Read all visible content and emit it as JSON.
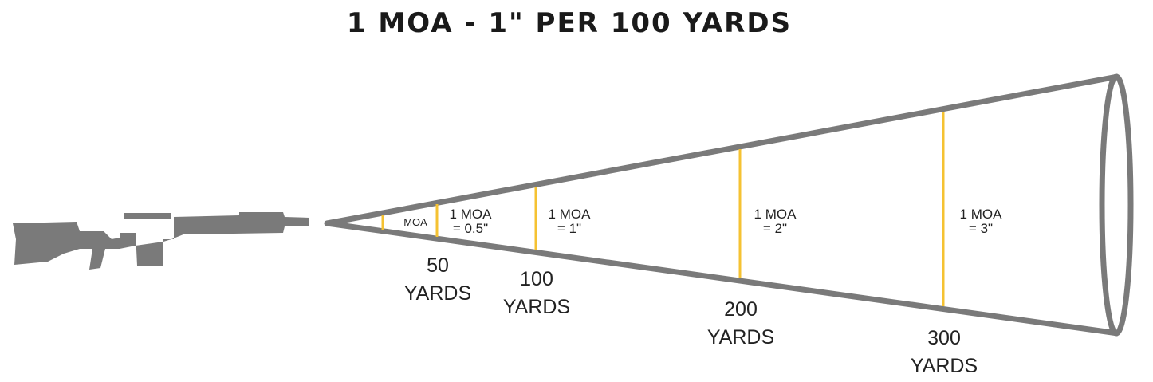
{
  "title": "1 MOA - 1\" PER 100 YARDS",
  "markers": [
    {
      "line1": "MOA"
    },
    {
      "line1": "1 MOA",
      "line2": "= 0.5\""
    },
    {
      "line1": "1 MOA",
      "line2": "= 1\""
    },
    {
      "line1": "1 MOA",
      "line2": "= 2\""
    },
    {
      "line1": "1 MOA",
      "line2": "= 3\""
    }
  ],
  "distances": [
    {
      "number": "50",
      "unit": "YARDS"
    },
    {
      "number": "100",
      "unit": "YARDS"
    },
    {
      "number": "200",
      "unit": "YARDS"
    },
    {
      "number": "300",
      "unit": "YARDS"
    }
  ]
}
